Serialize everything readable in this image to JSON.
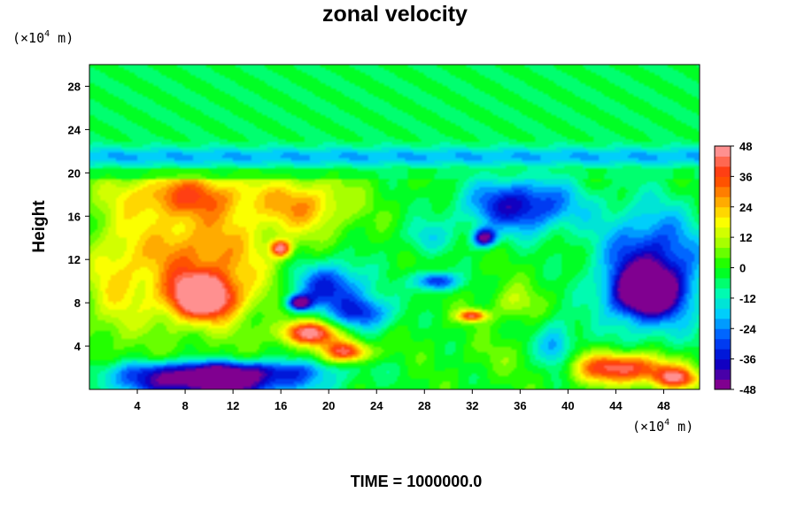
{
  "chart_data": {
    "type": "heatmap",
    "title": "zonal velocity",
    "ylabel": "Height",
    "xlabel": "",
    "unit_base": "(×10",
    "unit_exp": "4",
    "unit_tail": " m)",
    "xlim": [
      0,
      51
    ],
    "ylim": [
      0,
      30
    ],
    "x_ticks": [
      "4",
      "8",
      "12",
      "16",
      "20",
      "24",
      "28",
      "32",
      "36",
      "40",
      "44",
      "48"
    ],
    "y_ticks": [
      "4",
      "8",
      "12",
      "16",
      "20",
      "24",
      "28"
    ],
    "colorbar": {
      "ticks": [
        "48",
        "36",
        "24",
        "12",
        "0",
        "-12",
        "-24",
        "-36",
        "-48"
      ],
      "range": [
        -48,
        48
      ],
      "colors": [
        "#800090",
        "#0000c8",
        "#0050ff",
        "#00ccff",
        "#00ffaa",
        "#00ff00",
        "#a0ff00",
        "#ffff00",
        "#ff9900",
        "#ff3300",
        "#ff9090"
      ]
    },
    "blobs": [
      {
        "x": 9,
        "y": 12,
        "rx": 8,
        "ry": 7,
        "v": 30
      },
      {
        "x": 9.5,
        "y": 8.5,
        "rx": 3.5,
        "ry": 2.5,
        "v": 48
      },
      {
        "x": 8,
        "y": 18,
        "rx": 7,
        "ry": 2.5,
        "v": 26
      },
      {
        "x": 18,
        "y": 17,
        "rx": 5,
        "ry": 3.2,
        "v": 24
      },
      {
        "x": 2,
        "y": 10,
        "rx": 3,
        "ry": 8,
        "v": 12
      },
      {
        "x": 18.5,
        "y": 5.2,
        "rx": 3.2,
        "ry": 1.4,
        "v": 46
      },
      {
        "x": 21.5,
        "y": 3.5,
        "rx": 2.5,
        "ry": 1.2,
        "v": 40
      },
      {
        "x": 16,
        "y": 13,
        "rx": 1.0,
        "ry": 0.9,
        "v": 44
      },
      {
        "x": 20,
        "y": 9.5,
        "rx": 4,
        "ry": 3,
        "v": -34
      },
      {
        "x": 23,
        "y": 7,
        "rx": 3,
        "ry": 2,
        "v": -30
      },
      {
        "x": 17.5,
        "y": 8,
        "rx": 1.3,
        "ry": 0.9,
        "v": -46
      },
      {
        "x": 36,
        "y": 17,
        "rx": 6,
        "ry": 3.2,
        "v": -38
      },
      {
        "x": 33,
        "y": 14,
        "rx": 1.2,
        "ry": 1,
        "v": -46
      },
      {
        "x": 47,
        "y": 11,
        "rx": 5.5,
        "ry": 7,
        "v": -40
      },
      {
        "x": 46.5,
        "y": 9,
        "rx": 3.2,
        "ry": 2.5,
        "v": -48
      },
      {
        "x": 29,
        "y": 10,
        "rx": 2.2,
        "ry": 1.1,
        "v": -36
      },
      {
        "x": 28,
        "y": 14,
        "rx": 2.5,
        "ry": 2,
        "v": -14
      },
      {
        "x": 32,
        "y": 6.8,
        "rx": 1.5,
        "ry": 0.7,
        "v": 40
      },
      {
        "x": 44.5,
        "y": 2,
        "rx": 5,
        "ry": 1.8,
        "v": 46
      },
      {
        "x": 49,
        "y": 1,
        "rx": 2.5,
        "ry": 1.3,
        "v": 38
      },
      {
        "x": 10,
        "y": 0.5,
        "rx": 10,
        "ry": 1.6,
        "v": -48
      },
      {
        "x": 11,
        "y": 1.8,
        "rx": 11,
        "ry": 1.2,
        "v": -34
      },
      {
        "x": 35.5,
        "y": 8,
        "rx": 2.5,
        "ry": 2,
        "v": 12
      },
      {
        "x": 39,
        "y": 4,
        "rx": 2,
        "ry": 3,
        "v": -22
      },
      {
        "x": 26,
        "y": 18,
        "rx": 3,
        "ry": 2,
        "v": 0
      },
      {
        "x": 34,
        "y": 3,
        "rx": 3,
        "ry": 2,
        "v": 4
      }
    ],
    "strato": {
      "v_top": -4,
      "band_y": 21.5,
      "band_v": -16
    }
  },
  "footer": {
    "time_label": "TIME = 1000000.0"
  }
}
